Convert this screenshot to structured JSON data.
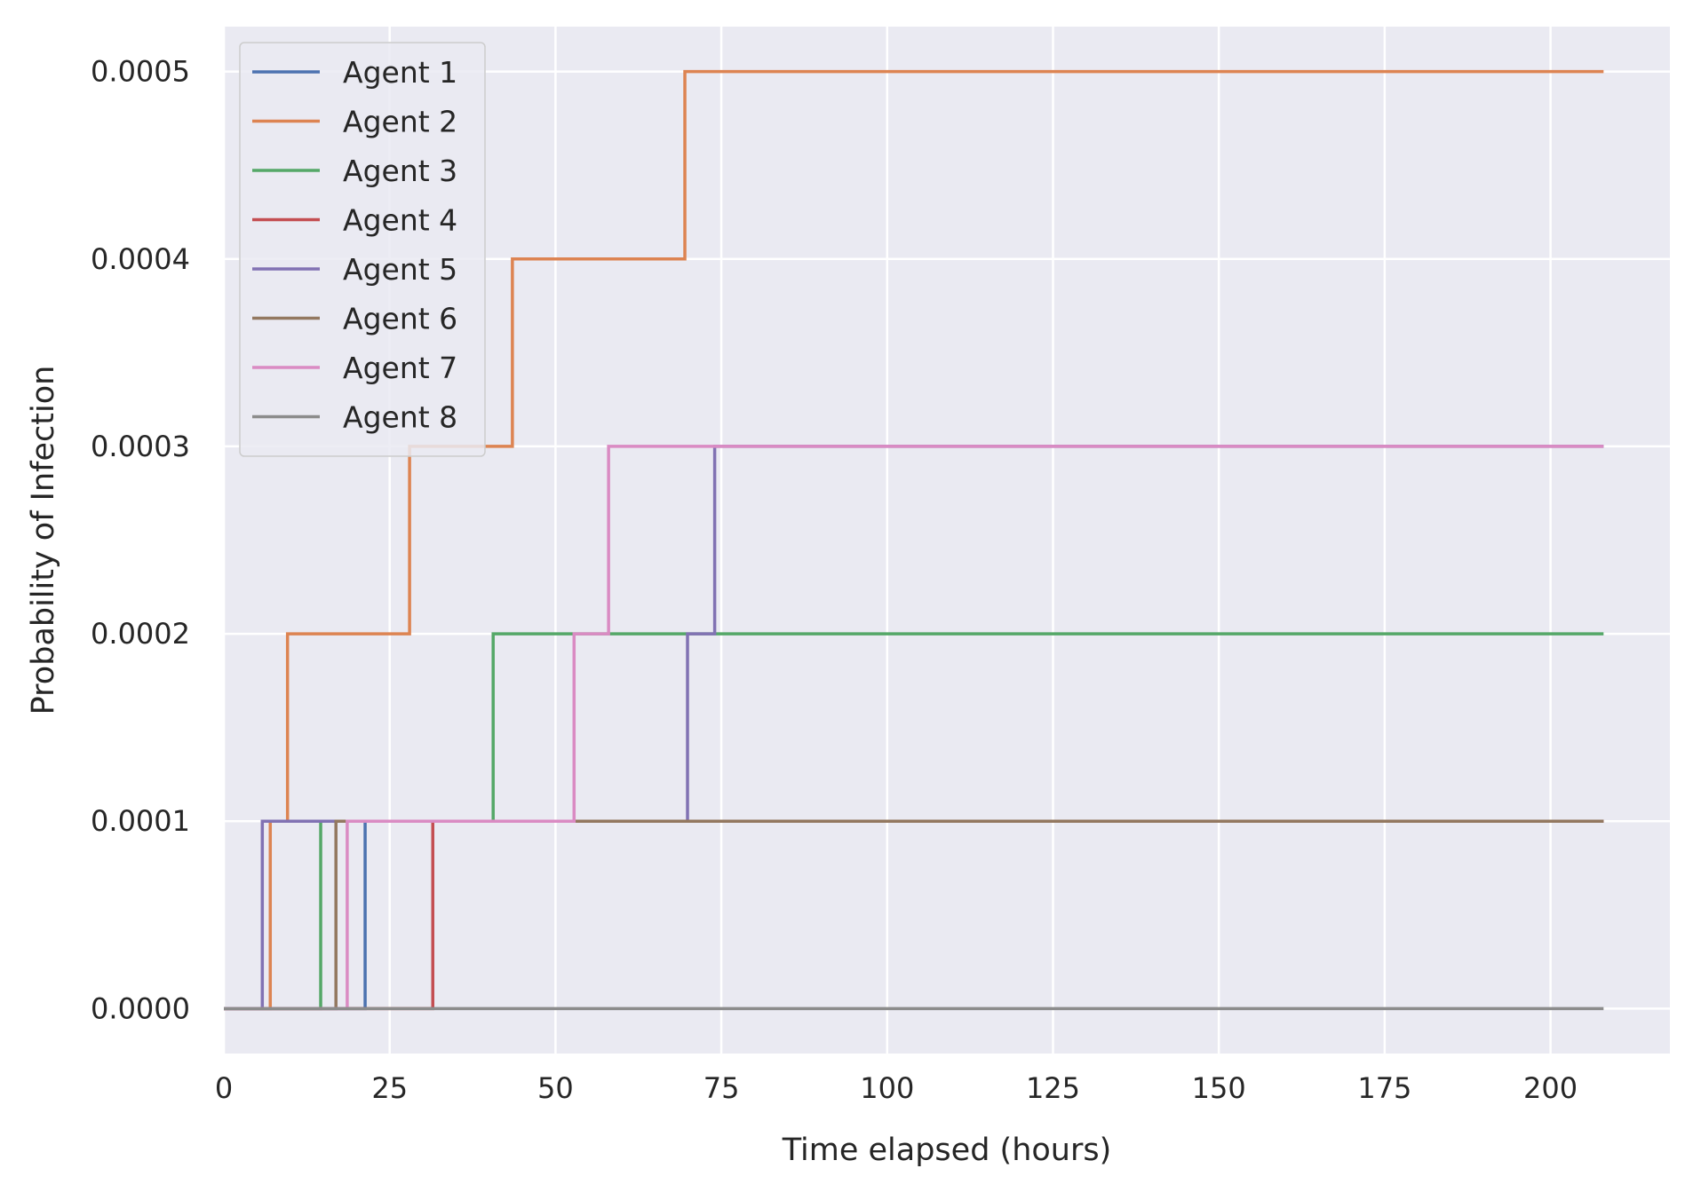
{
  "chart_data": {
    "type": "line",
    "title": "",
    "xlabel": "Time elapsed (hours)",
    "ylabel": "Probability of Infection",
    "xlim": [
      0,
      218
    ],
    "ylim": [
      -2.4e-05,
      0.000524
    ],
    "xticks": [
      0,
      25,
      50,
      75,
      100,
      125,
      150,
      175,
      200
    ],
    "yticks": [
      0.0,
      0.0001,
      0.0002,
      0.0003,
      0.0004,
      0.0005
    ],
    "xtick_labels": [
      "0",
      "25",
      "50",
      "75",
      "100",
      "125",
      "150",
      "175",
      "200"
    ],
    "ytick_labels": [
      "0.0000",
      "0.0001",
      "0.0002",
      "0.0003",
      "0.0004",
      "0.0005"
    ],
    "grid": true,
    "background": "#eaeaf2",
    "legend_position": "top-left",
    "step": "post",
    "series": [
      {
        "name": "Agent 1",
        "color": "#4c72b0",
        "x": [
          0,
          21.3,
          208
        ],
        "y": [
          0,
          0.0001,
          0.0001
        ]
      },
      {
        "name": "Agent 2",
        "color": "#dd8452",
        "x": [
          0,
          7.0,
          9.6,
          28.0,
          43.5,
          69.5,
          208
        ],
        "y": [
          0,
          0.0001,
          0.0002,
          0.0003,
          0.0004,
          0.0005,
          0.0005
        ]
      },
      {
        "name": "Agent 3",
        "color": "#55a868",
        "x": [
          0,
          14.6,
          40.6,
          208
        ],
        "y": [
          0,
          0.0001,
          0.0002,
          0.0002
        ]
      },
      {
        "name": "Agent 4",
        "color": "#c44e52",
        "x": [
          0,
          31.5,
          208
        ],
        "y": [
          0,
          0.0001,
          0.0001
        ]
      },
      {
        "name": "Agent 5",
        "color": "#8172b3",
        "x": [
          0,
          5.8,
          69.9,
          74.0,
          208
        ],
        "y": [
          0,
          0.0001,
          0.0002,
          0.0003,
          0.0003
        ]
      },
      {
        "name": "Agent 6",
        "color": "#937860",
        "x": [
          0,
          16.9,
          208
        ],
        "y": [
          0,
          0.0001,
          0.0001
        ]
      },
      {
        "name": "Agent 7",
        "color": "#da8bc3",
        "x": [
          0,
          18.6,
          52.8,
          58.0,
          208
        ],
        "y": [
          0,
          0.0001,
          0.0002,
          0.0003,
          0.0003
        ]
      },
      {
        "name": "Agent 8",
        "color": "#8c8c8c",
        "x": [
          0,
          208
        ],
        "y": [
          0,
          0
        ]
      }
    ]
  }
}
